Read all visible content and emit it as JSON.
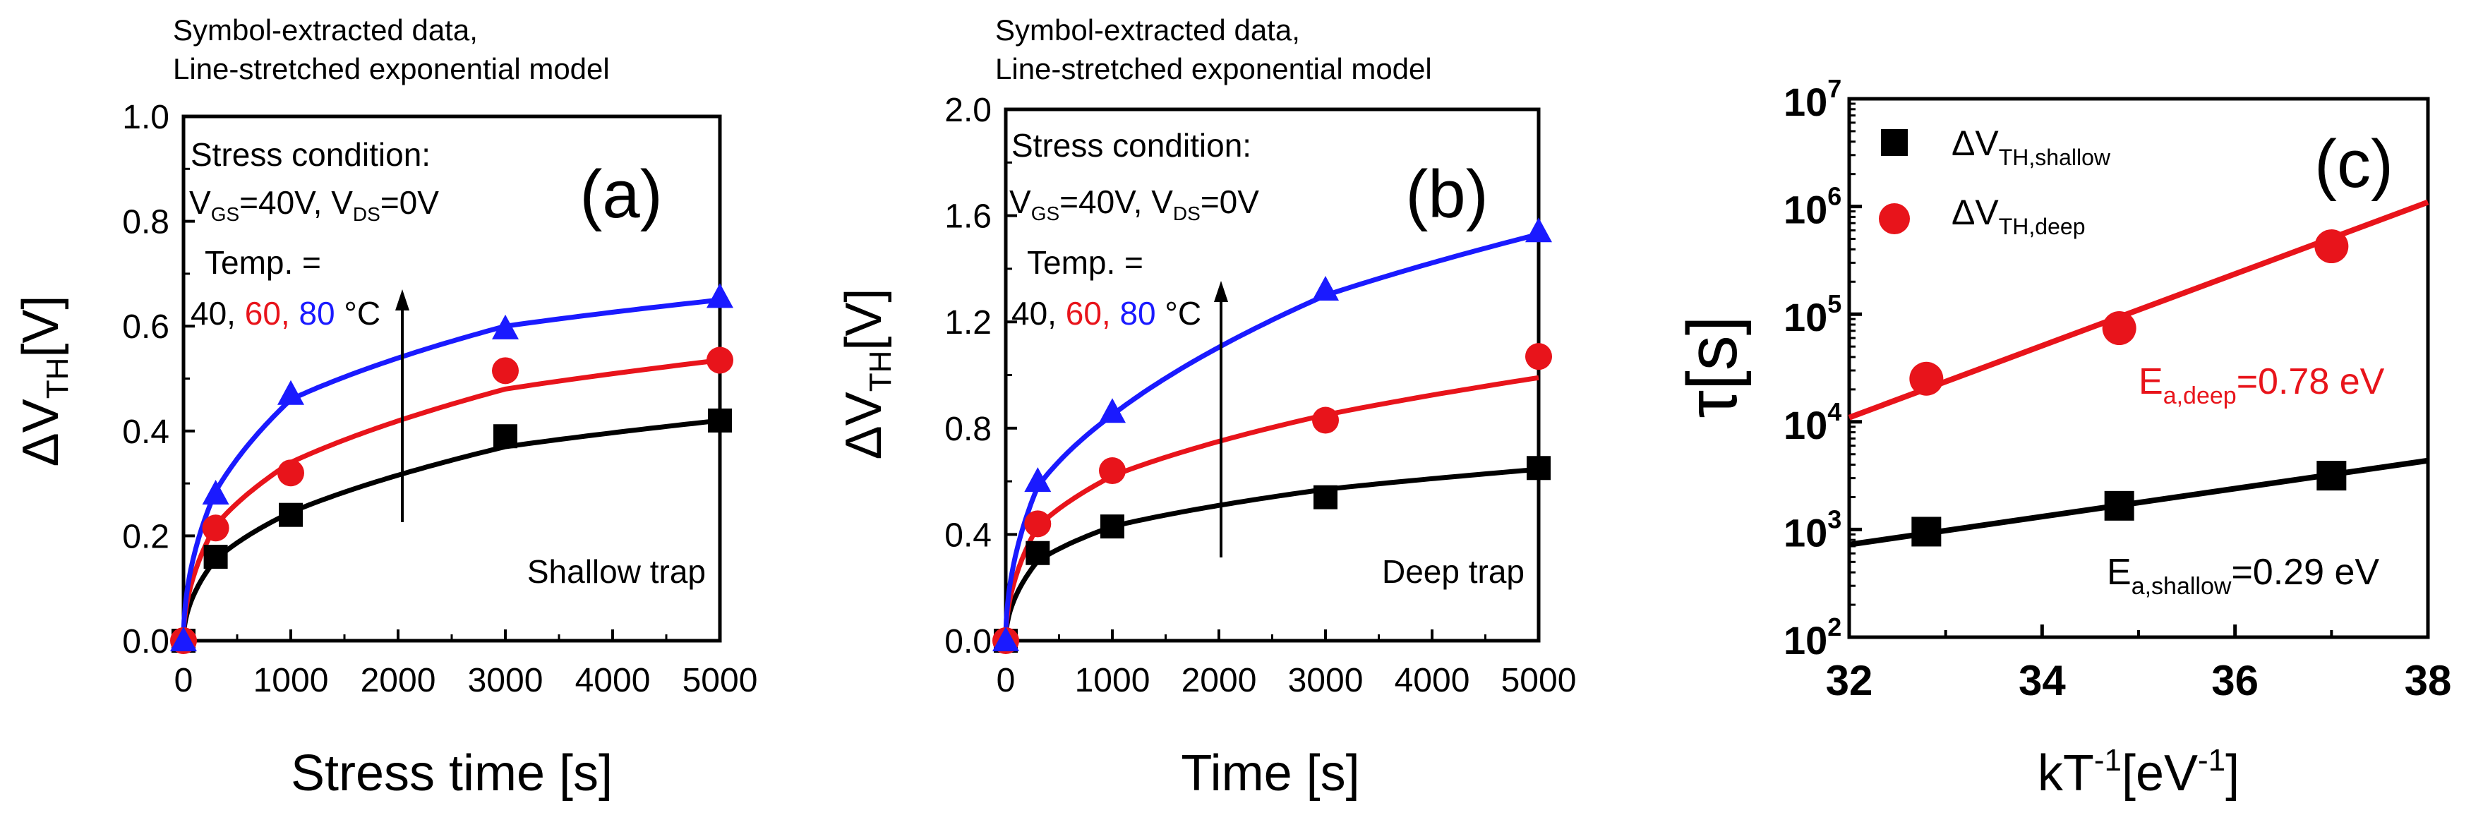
{
  "chart_data": [
    {
      "type": "scatter",
      "panel": "(a)",
      "header": [
        "Symbol-extracted data,",
        "Line-stretched exponential model"
      ],
      "stress_condition": "Stress condition:",
      "bias_text": {
        "vgs_main": "V",
        "vgs_sub": "GS",
        "vgs_val": "=40V, ",
        "vds_main": "V",
        "vds_sub": "DS",
        "vds_val": "=0V"
      },
      "temp_label": "Temp. =",
      "temp_values": [
        {
          "text": "40, ",
          "color": "#000000"
        },
        {
          "text": "60, ",
          "color": "#e8141b"
        },
        {
          "text": "80 ",
          "color": "#1a1aff"
        }
      ],
      "temp_unit": "°C",
      "trap_label": "Shallow trap",
      "xlabel": "Stress time [s]",
      "ylabel_prefix": "ΔV",
      "ylabel_sub": "TH",
      "ylabel_suffix": "[V]",
      "xlim": [
        0,
        5000
      ],
      "ylim": [
        0,
        1.0
      ],
      "xticks": [
        "0",
        "1000",
        "2000",
        "3000",
        "4000",
        "5000"
      ],
      "yticks": [
        "0.0",
        "0.2",
        "0.4",
        "0.6",
        "0.8",
        "1.0"
      ],
      "x": [
        0,
        300,
        1000,
        3000,
        5000
      ],
      "series": [
        {
          "name": "40 °C",
          "color": "#000000",
          "marker": "square",
          "values": [
            0.0,
            0.16,
            0.24,
            0.39,
            0.42
          ],
          "fit_values": [
            0.0,
            0.155,
            0.245,
            0.37,
            0.42
          ]
        },
        {
          "name": "60 °C",
          "color": "#e8141b",
          "marker": "circle",
          "values": [
            0.0,
            0.215,
            0.32,
            0.515,
            0.535
          ],
          "fit_values": [
            0.0,
            0.22,
            0.34,
            0.48,
            0.535
          ]
        },
        {
          "name": "80 °C",
          "color": "#1a1aff",
          "marker": "triangle",
          "values": [
            0.0,
            0.28,
            0.47,
            0.595,
            0.655
          ],
          "fit_values": [
            0.0,
            0.285,
            0.46,
            0.6,
            0.65
          ]
        }
      ]
    },
    {
      "type": "scatter",
      "panel": "(b)",
      "header": [
        "Symbol-extracted data,",
        "Line-stretched exponential model"
      ],
      "stress_condition": "Stress condition:",
      "bias_text": {
        "vgs_main": "V",
        "vgs_sub": "GS",
        "vgs_val": "=40V, ",
        "vds_main": "V",
        "vds_sub": "DS",
        "vds_val": "=0V"
      },
      "temp_label": "Temp. =",
      "temp_values": [
        {
          "text": "40, ",
          "color": "#000000"
        },
        {
          "text": "60, ",
          "color": "#e8141b"
        },
        {
          "text": "80 ",
          "color": "#1a1aff"
        }
      ],
      "temp_unit": "°C",
      "trap_label": "Deep trap",
      "xlabel": "Time [s]",
      "ylabel_prefix": "ΔV",
      "ylabel_sub": "TH",
      "ylabel_suffix": "[V]",
      "xlim": [
        0,
        5000
      ],
      "ylim": [
        0,
        2.0
      ],
      "xticks": [
        "0",
        "1000",
        "2000",
        "3000",
        "4000",
        "5000"
      ],
      "yticks": [
        "0.0",
        "0.4",
        "0.8",
        "1.2",
        "1.6",
        "2.0"
      ],
      "x": [
        0,
        300,
        1000,
        3000,
        5000
      ],
      "series": [
        {
          "name": "40 °C",
          "color": "#000000",
          "marker": "square",
          "values": [
            0.0,
            0.33,
            0.43,
            0.54,
            0.65
          ],
          "fit_values": [
            0.0,
            0.3,
            0.43,
            0.57,
            0.645
          ]
        },
        {
          "name": "60 °C",
          "color": "#e8141b",
          "marker": "circle",
          "values": [
            0.0,
            0.44,
            0.64,
            0.83,
            1.07
          ],
          "fit_values": [
            0.0,
            0.43,
            0.62,
            0.85,
            0.99
          ]
        },
        {
          "name": "80 °C",
          "color": "#1a1aff",
          "marker": "triangle",
          "values": [
            0.0,
            0.6,
            0.86,
            1.32,
            1.54
          ],
          "fit_values": [
            0.0,
            0.58,
            0.85,
            1.3,
            1.53
          ]
        }
      ]
    },
    {
      "type": "scatter",
      "panel": "(c)",
      "xlabel_main": "kT",
      "xlabel_sup": "-1",
      "xlabel_mid": "[eV",
      "xlabel_sup2": "-1",
      "xlabel_end": "]",
      "ylabel": "τ[s]",
      "xlim": [
        32,
        38
      ],
      "ylim_log10": [
        2,
        7
      ],
      "yscale": "log",
      "xticks": [
        "32",
        "34",
        "36",
        "38"
      ],
      "ytick_base": "10",
      "ytick_exps": [
        "2",
        "3",
        "4",
        "5",
        "6",
        "7"
      ],
      "legend": [
        {
          "main": "ΔV",
          "sub": "TH,shallow",
          "color": "#000000",
          "marker": "square"
        },
        {
          "main": "ΔV",
          "sub": "TH,deep",
          "color": "#e8141b",
          "marker": "circle"
        }
      ],
      "annotations": [
        {
          "main": "E",
          "sub": "a,deep",
          "value": "=0.78 eV",
          "color": "#e8141b"
        },
        {
          "main": "E",
          "sub": "a,shallow",
          "value": "=0.29 eV",
          "color": "#000000"
        }
      ],
      "series": [
        {
          "name": "ΔV_TH,shallow",
          "color": "#000000",
          "marker": "square",
          "x": [
            32.8,
            34.8,
            37.0
          ],
          "log10_values": [
            2.98,
            3.22,
            3.5
          ],
          "fit_x": [
            32,
            38
          ],
          "fit_log10": [
            2.86,
            3.64
          ]
        },
        {
          "name": "ΔV_TH,deep",
          "color": "#e8141b",
          "marker": "circle",
          "x": [
            32.8,
            34.8,
            37.0
          ],
          "log10_values": [
            4.4,
            4.87,
            5.63
          ],
          "fit_x": [
            32,
            38
          ],
          "fit_log10": [
            4.04,
            6.04
          ]
        }
      ]
    }
  ]
}
